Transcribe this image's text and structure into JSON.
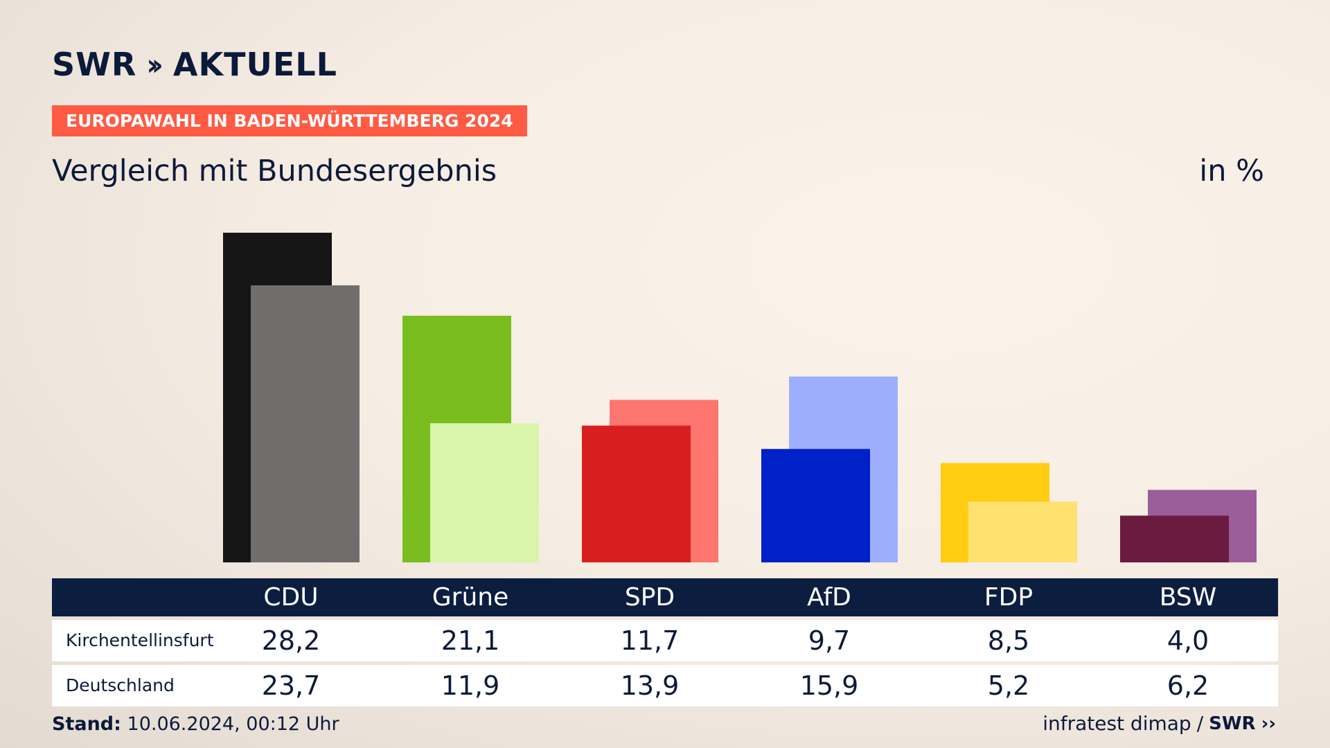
{
  "brand": {
    "logo": "SWR",
    "logo_suffix": "AKTUELL"
  },
  "badge": "EUROPAWAHL IN BADEN-WÜRTTEMBERG 2024",
  "subtitle": "Vergleich mit Bundesergebnis",
  "unit": "in %",
  "footer": {
    "stand_label": "Stand:",
    "stand_value": "10.06.2024, 00:12 Uhr",
    "source": "infratest dimap",
    "separator": "/",
    "source_logo": "SWR"
  },
  "table": {
    "headers": [
      "CDU",
      "Grüne",
      "SPD",
      "AfD",
      "FDP",
      "BSW"
    ],
    "rows": [
      {
        "label": "Kirchentellinsfurt",
        "values": [
          "28,2",
          "21,1",
          "11,7",
          "9,7",
          "8,5",
          "4,0"
        ]
      },
      {
        "label": "Deutschland",
        "values": [
          "23,7",
          "11,9",
          "13,9",
          "15,9",
          "5,2",
          "6,2"
        ]
      }
    ]
  },
  "chart_data": {
    "type": "bar",
    "categories": [
      "CDU",
      "Grüne",
      "SPD",
      "AfD",
      "FDP",
      "BSW"
    ],
    "series": [
      {
        "name": "Kirchentellinsfurt",
        "values": [
          28.2,
          21.1,
          11.7,
          9.7,
          8.5,
          4.0
        ],
        "colors": [
          "#151515",
          "#79be1e",
          "#d81f1f",
          "#0020c8",
          "#ffcc11",
          "#6b1a40"
        ]
      },
      {
        "name": "Deutschland",
        "values": [
          23.7,
          11.9,
          13.9,
          15.9,
          5.2,
          6.2
        ],
        "colors": [
          "#6f6e6c",
          "#d8f5aa",
          "#ff7570",
          "#9eaeff",
          "#ffe170",
          "#9b5e9a"
        ]
      }
    ],
    "ylim": [
      0,
      28.2
    ],
    "grid": false,
    "legend": "table-below"
  }
}
